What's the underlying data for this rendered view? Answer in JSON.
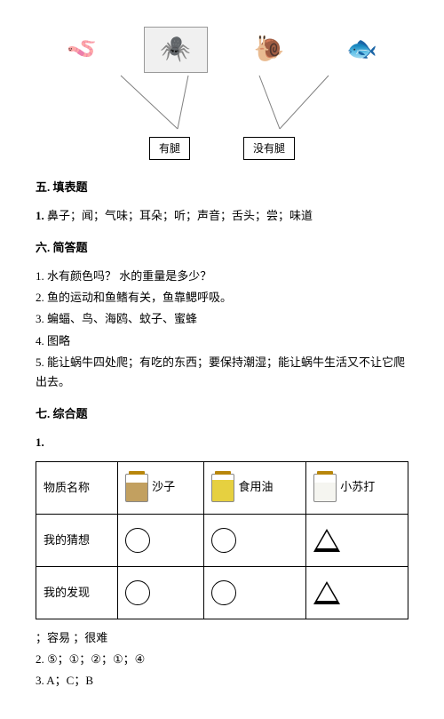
{
  "diagram": {
    "organisms": [
      {
        "name": "earthworm",
        "glyph": "🪱",
        "boxed": false
      },
      {
        "name": "spider",
        "glyph": "🕷️",
        "boxed": true
      },
      {
        "name": "slug",
        "glyph": "🐌",
        "boxed": false
      },
      {
        "name": "fish",
        "glyph": "🐟",
        "boxed": false
      }
    ],
    "labels": {
      "left": "有腿",
      "right": "没有腿"
    },
    "connectors": [
      {
        "from": [
          96,
          55
        ],
        "to": [
          160,
          115
        ]
      },
      {
        "from": [
          172,
          55
        ],
        "to": [
          160,
          115
        ]
      },
      {
        "from": [
          252,
          55
        ],
        "to": [
          275,
          115
        ]
      },
      {
        "from": [
          330,
          55
        ],
        "to": [
          275,
          115
        ]
      }
    ],
    "line_color": "#808080"
  },
  "section5": {
    "heading": "五. 填表题",
    "q1_label": "1.",
    "q1_text": "鼻子；闻；气味；耳朵；听；声音；舌头；尝；味道"
  },
  "section6": {
    "heading": "六. 简答题",
    "items": [
      "1. 水有颜色吗？  水的重量是多少？",
      "2. 鱼的运动和鱼鳍有关，鱼靠鳃呼吸。",
      "3. 蝙蝠、鸟、海鸥、蚊子、蜜蜂",
      "4. 图略",
      "5. 能让蜗牛四处爬；有吃的东西；要保持潮湿；能让蜗牛生活又不让它爬出去。"
    ]
  },
  "section7": {
    "heading": "七. 综合题",
    "q1_label": "1.",
    "table": {
      "row_headers": [
        "物质名称",
        "我的猜想",
        "我的发现"
      ],
      "col_headers": [
        "沙子",
        "食用油",
        "小苏打"
      ],
      "jar_variants": [
        "sand",
        "oil",
        "soda"
      ],
      "guess": [
        "circle",
        "circle",
        "triangle"
      ],
      "find": [
        "circle",
        "circle",
        "triangle"
      ]
    },
    "legend": "；容易  ；很难",
    "q2": "2. ⑤；①；②；①；④",
    "q3": "3. A；C；B"
  }
}
